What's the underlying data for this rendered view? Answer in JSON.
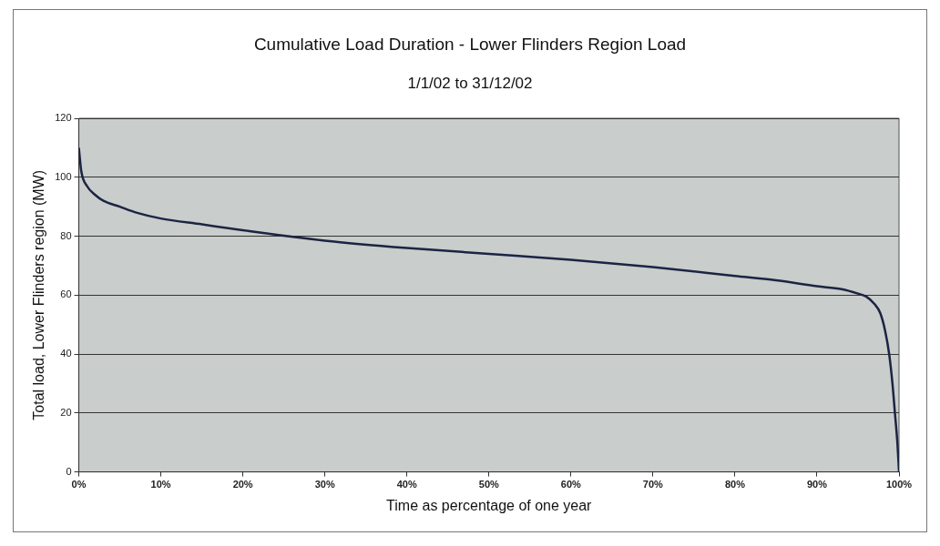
{
  "chart_data": {
    "type": "line",
    "title": "Cumulative Load Duration - Lower Flinders Region Load",
    "subtitle": "1/1/02 to 31/12/02",
    "xlabel": "Time as percentage of one year",
    "ylabel": "Total load, Lower Flinders region (MW)",
    "x": [
      0,
      0.3,
      1,
      2,
      3,
      5,
      7,
      10,
      15,
      20,
      30,
      40,
      50,
      60,
      70,
      80,
      85,
      90,
      93,
      95,
      96,
      97,
      97.7,
      98.3,
      98.8,
      99.2,
      99.5,
      99.8,
      100
    ],
    "series": [
      {
        "color": "#1c2444",
        "values": [
          110,
          102,
          97,
          94,
          92,
          90,
          88,
          86,
          84,
          82,
          78.5,
          76,
          74,
          72,
          69.5,
          66.5,
          65,
          63,
          62,
          60.5,
          59.5,
          57,
          54,
          48,
          40,
          30,
          20,
          10,
          0
        ]
      }
    ],
    "xlim": [
      0,
      100
    ],
    "xticks": [
      {
        "value": 0,
        "label": "0%"
      },
      {
        "value": 10,
        "label": "10%"
      },
      {
        "value": 20,
        "label": "20%"
      },
      {
        "value": 30,
        "label": "30%"
      },
      {
        "value": 40,
        "label": "40%"
      },
      {
        "value": 50,
        "label": "50%"
      },
      {
        "value": 60,
        "label": "60%"
      },
      {
        "value": 70,
        "label": "70%"
      },
      {
        "value": 80,
        "label": "80%"
      },
      {
        "value": 90,
        "label": "90%"
      },
      {
        "value": 100,
        "label": "100%"
      }
    ],
    "ylim": [
      0,
      120
    ],
    "yticks": [
      0,
      20,
      40,
      60,
      80,
      100,
      120
    ],
    "grid": "y",
    "legend": false,
    "marker": "none",
    "line_style": "solid"
  }
}
